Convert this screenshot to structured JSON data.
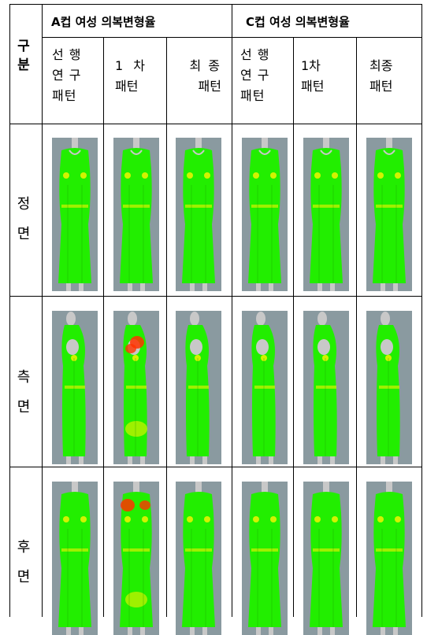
{
  "header": {
    "gubun": [
      "구",
      "분"
    ],
    "group_a": "A컵 여성 의복변형율",
    "group_c": "C컵 여성 의복변형율",
    "columns": [
      [
        "선 행",
        "연 구",
        "패턴"
      ],
      [
        "1  차",
        "패턴"
      ],
      [
        "최 종",
        "패턴"
      ],
      [
        "선 행",
        "연 구",
        "패턴"
      ],
      [
        "1차",
        "패턴"
      ],
      [
        "최종",
        "패턴"
      ]
    ]
  },
  "rows": [
    {
      "label": [
        "정",
        "면"
      ],
      "view": "front"
    },
    {
      "label": [
        "측",
        "면"
      ],
      "view": "side"
    },
    {
      "label": [
        "후",
        "면"
      ],
      "view": "back"
    }
  ],
  "colors": {
    "strain_low": "#22ee00",
    "strain_mid": "#f2f200",
    "strain_high": "#ff3300",
    "background": "#8a9aa0",
    "mannequin": "#c8c8c8"
  }
}
